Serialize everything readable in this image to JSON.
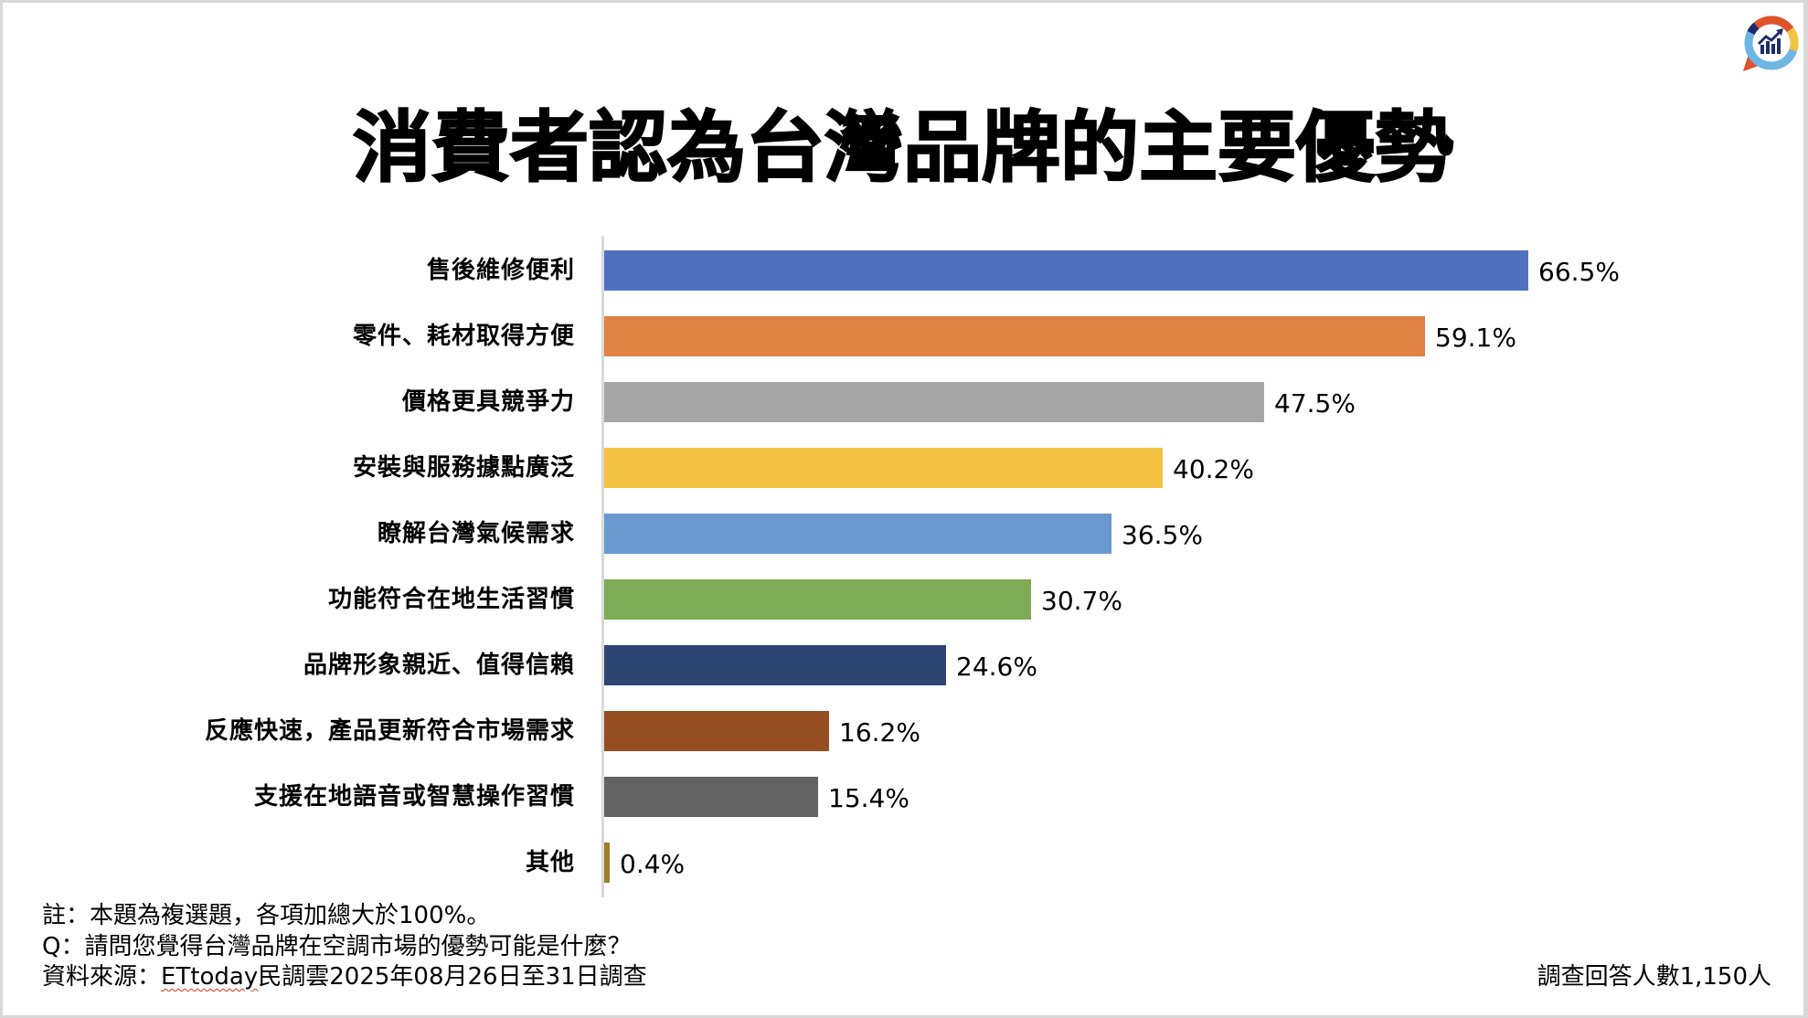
{
  "title": "消費者認為台灣品牌的主要優勢",
  "logo": {
    "icon": "poll-cloud-chart-logo-icon",
    "colors": [
      "#E0522A",
      "#F3C342",
      "#6DB6E4",
      "#1F2A6B"
    ]
  },
  "chart_data": {
    "type": "bar",
    "orientation": "horizontal",
    "title": "消費者認為台灣品牌的主要優勢",
    "xlabel": "",
    "ylabel": "",
    "xlim": [
      0,
      70
    ],
    "grid": false,
    "legend": "none",
    "categories": [
      "售後維修便利",
      "零件、耗材取得方便",
      "價格更具競爭力",
      "安裝與服務據點廣泛",
      "瞭解台灣氣候需求",
      "功能符合在地生活習慣",
      "品牌形象親近、值得信賴",
      "反應快速，產品更新符合市場需求",
      "支援在地語音或智慧操作習慣",
      "其他"
    ],
    "values": [
      66.5,
      59.1,
      47.5,
      40.2,
      36.5,
      30.7,
      24.6,
      16.2,
      15.4,
      0.4
    ],
    "value_labels": [
      "66.5%",
      "59.1%",
      "47.5%",
      "40.2%",
      "36.5%",
      "30.7%",
      "24.6%",
      "16.2%",
      "15.4%",
      "0.4%"
    ],
    "colors": [
      "#4F71BE",
      "#DF8244",
      "#A5A5A5",
      "#F4C242",
      "#6999CF",
      "#7FAB57",
      "#2E4473",
      "#954F23",
      "#636363",
      "#9E7E2C"
    ]
  },
  "footnotes": {
    "note": "註：本題為複選題，各項加總大於100%。",
    "question": "Q：請問您覺得台灣品牌在空調市場的優勢可能是什麼？",
    "source_prefix": "資料來源：",
    "source_brand": "ETtoday",
    "source_suffix": "民調雲2025年08月26日至31日調查"
  },
  "sample_size": "調查回答人數1,150人"
}
